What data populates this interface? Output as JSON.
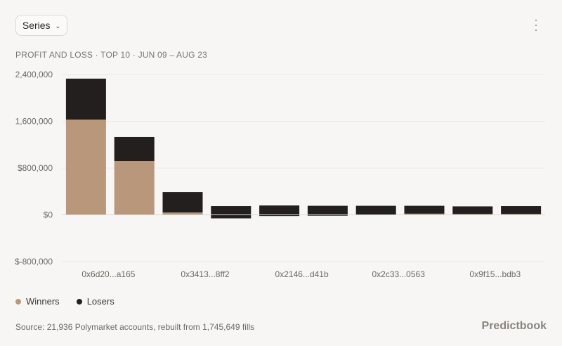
{
  "header": {
    "series_button_label": "Series",
    "subtitle": "PROFIT AND LOSS · TOP 10 · JUN 09 – AUG 23"
  },
  "chart_data": {
    "type": "bar",
    "stacked": true,
    "categories": [
      "0x6d20...a165",
      "",
      "0x3413...8ff2",
      "",
      "0x2146...d41b",
      "",
      "0x2c33...0563",
      "",
      "0x9f15...bdb3",
      ""
    ],
    "series": [
      {
        "name": "Winners",
        "color": "#b8977a",
        "values": [
          1630000,
          920000,
          40000,
          0,
          0,
          0,
          0,
          20000,
          15000,
          15000
        ]
      },
      {
        "name": "Losers",
        "color": "#221f1e",
        "values": [
          700000,
          410000,
          350000,
          210000,
          180000,
          170000,
          160000,
          135000,
          130000,
          135000
        ]
      }
    ],
    "negative_offsets": [
      0,
      0,
      0,
      -60000,
      -20000,
      -15000,
      -5000,
      0,
      0,
      0
    ],
    "yticks": [
      {
        "value": 2400000,
        "label": "2,400,000"
      },
      {
        "value": 1600000,
        "label": "1,600,000"
      },
      {
        "value": 800000,
        "label": "$800,000"
      },
      {
        "value": 0,
        "label": "$0"
      },
      {
        "value": -800000,
        "label": "$-800,000"
      }
    ],
    "ylim": [
      -800000,
      2400000
    ],
    "grid": true,
    "legend_position": "bottom-left"
  },
  "legend": {
    "winners": "Winners",
    "losers": "Losers"
  },
  "footer": {
    "source": "Source: 21,936 Polymarket accounts, rebuilt from 1,745,649 fills",
    "brand": "Predictbook"
  },
  "icons": {
    "more": "more-vertical-icon",
    "chevron": "chevron-down-icon"
  }
}
